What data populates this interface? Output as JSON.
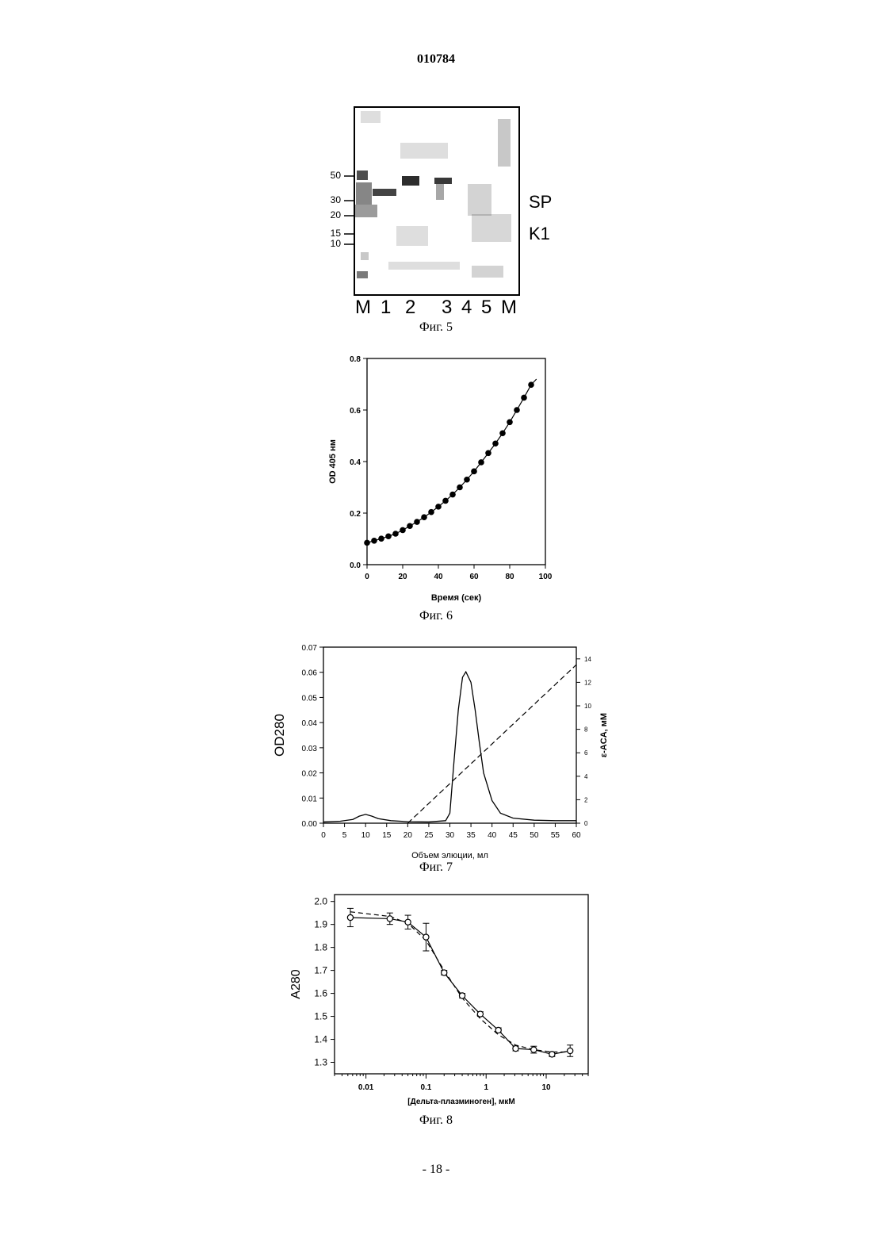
{
  "header": {
    "doc_number": "010784"
  },
  "footer": {
    "page": "- 18 -"
  },
  "figures": {
    "fig5": {
      "caption": "Фиг. 5",
      "markers": [
        "50",
        "30",
        "20",
        "15",
        "10"
      ],
      "bands": [
        "SP",
        "K1"
      ],
      "lanes": [
        "M",
        "1",
        "2",
        "3",
        "4",
        "5",
        "M"
      ]
    },
    "fig6": {
      "caption": "Фиг. 6"
    },
    "fig7": {
      "caption": "Фиг. 7"
    },
    "fig8": {
      "caption": "Фиг. 8"
    }
  },
  "chart_data": [
    {
      "type": "scatter",
      "id": "fig6",
      "xlabel": "Время (сек)",
      "ylabel": "OD 405 нм",
      "xlim": [
        0,
        100
      ],
      "ylim": [
        0.0,
        0.8
      ],
      "xticks": [
        0,
        20,
        40,
        60,
        80,
        100
      ],
      "yticks": [
        0.0,
        0.2,
        0.4,
        0.6,
        0.8
      ],
      "ytick_labels": [
        "0.0",
        "0.2",
        "0.4",
        "0.6",
        "0.8"
      ],
      "series": [
        {
          "x": [
            0,
            4,
            8,
            12,
            16,
            20,
            24,
            28,
            32,
            36,
            40,
            44,
            48,
            52,
            56,
            60,
            64,
            68,
            72,
            76,
            80,
            84,
            88,
            92
          ],
          "y": [
            0.085,
            0.093,
            0.101,
            0.11,
            0.12,
            0.134,
            0.15,
            0.166,
            0.184,
            0.204,
            0.225,
            0.248,
            0.272,
            0.3,
            0.33,
            0.362,
            0.397,
            0.433,
            0.47,
            0.51,
            0.553,
            0.6,
            0.648,
            0.698
          ]
        }
      ]
    },
    {
      "type": "line",
      "id": "fig7",
      "xlabel": "Объем элюции, мл",
      "ylabel": "OD280",
      "y2label": "ε-ACA, мМ",
      "xlim": [
        0,
        60
      ],
      "ylim": [
        0.0,
        0.07
      ],
      "y2lim": [
        0,
        15
      ],
      "xticks": [
        0,
        5,
        10,
        15,
        20,
        25,
        30,
        35,
        40,
        45,
        50,
        55,
        60
      ],
      "yticks": [
        0.0,
        0.01,
        0.02,
        0.03,
        0.04,
        0.05,
        0.06,
        0.07
      ],
      "ytick_labels": [
        "0.00",
        "0.01",
        "0.02",
        "0.03",
        "0.04",
        "0.05",
        "0.06",
        "0.07"
      ],
      "y2ticks": [
        0,
        2,
        4,
        6,
        8,
        10,
        12,
        14
      ],
      "series": [
        {
          "style": "solid",
          "x": [
            0,
            4,
            7,
            8.5,
            10,
            11.5,
            13,
            16,
            20,
            25,
            29,
            30,
            31,
            32,
            33,
            33.8,
            35,
            36,
            37,
            38,
            40,
            42,
            45,
            50,
            55,
            60
          ],
          "y": [
            0.0005,
            0.0008,
            0.0015,
            0.0028,
            0.0035,
            0.0028,
            0.0018,
            0.001,
            0.0006,
            0.0005,
            0.001,
            0.004,
            0.025,
            0.045,
            0.058,
            0.0602,
            0.056,
            0.045,
            0.032,
            0.02,
            0.009,
            0.004,
            0.002,
            0.0012,
            0.001,
            0.001
          ]
        },
        {
          "style": "dashed",
          "axis": "y2",
          "x": [
            20,
            60
          ],
          "y": [
            0,
            13.5
          ]
        }
      ]
    },
    {
      "type": "line",
      "id": "fig8",
      "xlabel": "[Дельта-плазминоген], мкМ",
      "ylabel": "A280",
      "xscale": "log",
      "xlim": [
        0.003,
        50
      ],
      "ylim": [
        1.25,
        2.03
      ],
      "xticks": [
        0.01,
        0.1,
        1,
        10
      ],
      "xtick_labels": [
        "0.01",
        "0.1",
        "1",
        "10"
      ],
      "yticks": [
        1.3,
        1.4,
        1.5,
        1.6,
        1.7,
        1.8,
        1.9,
        2.0
      ],
      "ytick_labels": [
        "1.3",
        "1.4",
        "1.5",
        "1.6",
        "1.7",
        "1.8",
        "1.9",
        "2.0"
      ],
      "series": [
        {
          "style": "solid-markers",
          "x": [
            0.0055,
            0.025,
            0.05,
            0.1,
            0.2,
            0.4,
            0.8,
            1.6,
            3.1,
            6.2,
            12.5,
            25
          ],
          "y": [
            1.93,
            1.925,
            1.91,
            1.845,
            1.69,
            1.59,
            1.51,
            1.44,
            1.36,
            1.355,
            1.335,
            1.35
          ],
          "err": [
            0.04,
            0.025,
            0.03,
            0.06,
            0.01,
            0.01,
            0.01,
            0.01,
            0.01,
            0.015,
            0.01,
            0.025
          ]
        },
        {
          "style": "dashed",
          "x": [
            0.0055,
            0.025,
            0.05,
            0.1,
            0.2,
            0.4,
            0.8,
            1.6,
            3.1,
            6.2,
            12.5,
            25
          ],
          "y": [
            1.955,
            1.935,
            1.905,
            1.83,
            1.7,
            1.58,
            1.49,
            1.42,
            1.375,
            1.355,
            1.345,
            1.345
          ]
        }
      ]
    }
  ]
}
